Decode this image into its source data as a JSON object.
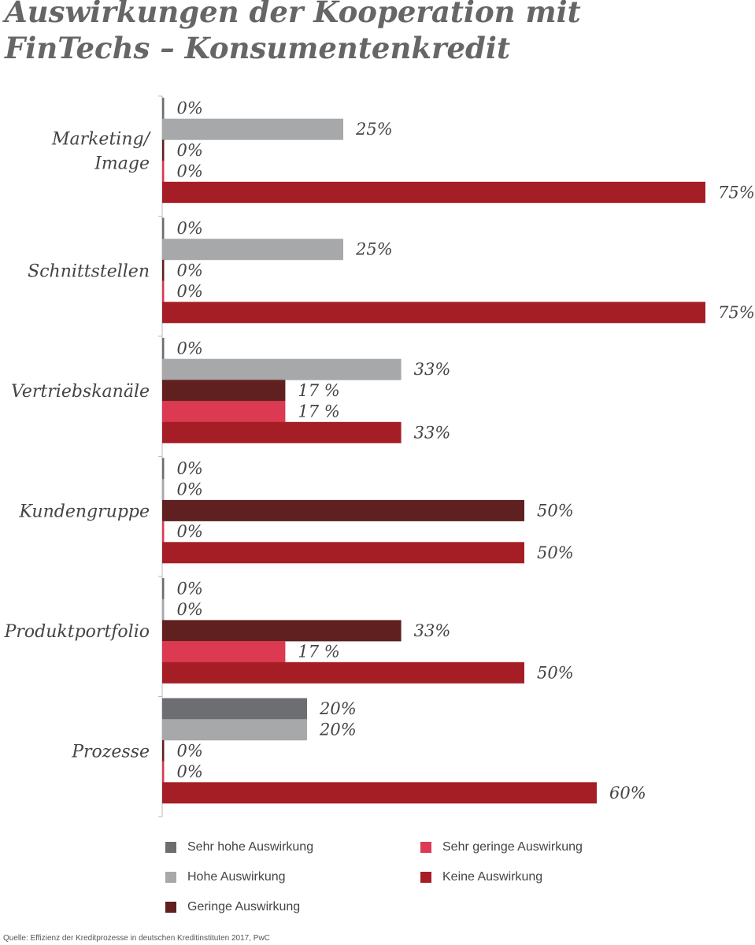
{
  "title_lines": [
    "Auswirkungen der Kooperation mit",
    "FinTechs – Konsumentenkredit"
  ],
  "source": "Quelle: Effizienz der Kreditprozesse in deutschen Kreditinstituten 2017, PwC",
  "chart_data": {
    "type": "bar",
    "orientation": "horizontal",
    "title": "Auswirkungen der Kooperation mit FinTechs – Konsumentenkredit",
    "categories": [
      [
        "Marketing/",
        "Image"
      ],
      [
        "Schnittstellen"
      ],
      [
        "Vertriebskanäle"
      ],
      [
        "Kundengruppe"
      ],
      [
        "Produktportfolio"
      ],
      [
        "Prozesse"
      ]
    ],
    "series": [
      {
        "name": "Sehr hohe Auswirkung",
        "color": "#6d6e71",
        "values": [
          0,
          0,
          0,
          0,
          0,
          20
        ],
        "labels": [
          "0%",
          "0%",
          "0%",
          "0%",
          "0%",
          "20%"
        ]
      },
      {
        "name": "Hohe Auswirkung",
        "color": "#a7a8aa",
        "values": [
          25,
          25,
          33,
          0,
          0,
          20
        ],
        "labels": [
          "25%",
          "25%",
          "33%",
          "0%",
          "0%",
          "20%"
        ]
      },
      {
        "name": "Geringe Auswirkung",
        "color": "#602020",
        "values": [
          0,
          0,
          17,
          50,
          33,
          0
        ],
        "labels": [
          "0%",
          "0%",
          "17 %",
          "50%",
          "33%",
          "0%"
        ]
      },
      {
        "name": "Sehr geringe Auswirkung",
        "color": "#db3a52",
        "values": [
          0,
          0,
          17,
          0,
          17,
          0
        ],
        "labels": [
          "0%",
          "0%",
          "17 %",
          "0%",
          "17 %",
          "0%"
        ]
      },
      {
        "name": "Keine Auswirkung",
        "color": "#a51e25",
        "values": [
          75,
          75,
          33,
          50,
          50,
          60
        ],
        "labels": [
          "75%",
          "75%",
          "33%",
          "50%",
          "50%",
          "60%"
        ]
      }
    ],
    "xlim": [
      0,
      75
    ],
    "grid": false,
    "legend_position": "bottom"
  },
  "legend": [
    {
      "label": "Sehr hohe Auswirkung",
      "color": "#6d6e71"
    },
    {
      "label": "Hohe Auswirkung",
      "color": "#a7a8aa"
    },
    {
      "label": "Geringe Auswirkung",
      "color": "#602020"
    },
    {
      "label": "Sehr geringe Auswirkung",
      "color": "#db3a52"
    },
    {
      "label": "Keine Auswirkung",
      "color": "#a51e25"
    }
  ]
}
